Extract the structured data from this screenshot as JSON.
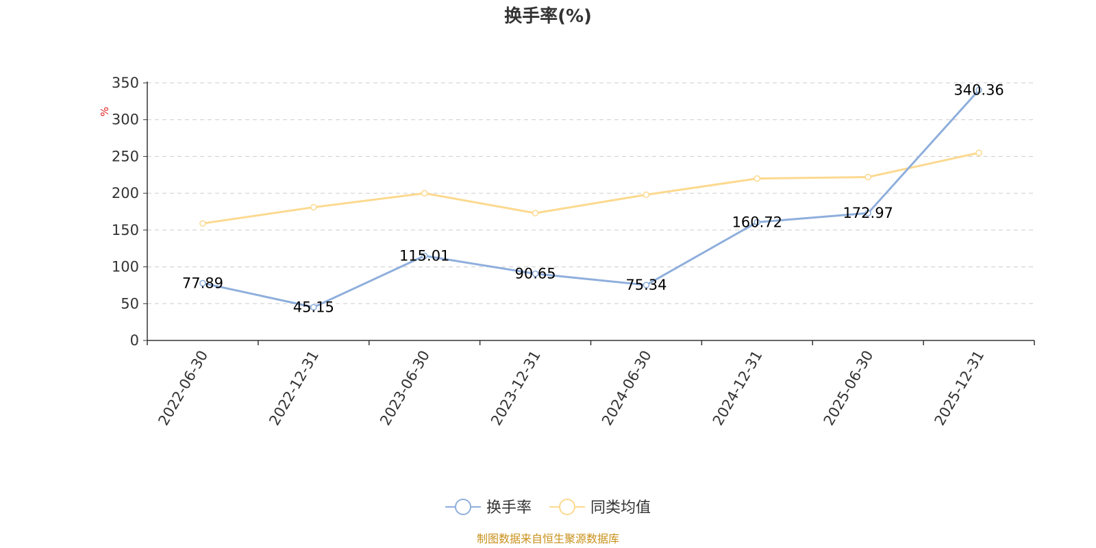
{
  "chart_data": {
    "type": "line",
    "title": "换手率(%)",
    "ylabel": "%",
    "xlabel": "",
    "ylim": [
      0,
      350
    ],
    "yticks": [
      0,
      50,
      100,
      150,
      200,
      250,
      300,
      350
    ],
    "grid": true,
    "categories": [
      "2022-06-30",
      "2022-12-31",
      "2023-06-30",
      "2023-12-31",
      "2024-06-30",
      "2024-12-31",
      "2025-06-30",
      "2025-12-31"
    ],
    "series": [
      {
        "name": "换手率",
        "color": "#8eaedc",
        "values": [
          77.89,
          45.15,
          115.01,
          90.65,
          75.34,
          160.72,
          172.97,
          340.36
        ],
        "labels": [
          "77.89",
          "45.15",
          "115.01",
          "90.65",
          "75.34",
          "160.72",
          "172.97",
          "340.36"
        ]
      },
      {
        "name": "同类均值",
        "color": "#fcd98f",
        "values": [
          159,
          181,
          200,
          173,
          198,
          220,
          222,
          255
        ]
      }
    ],
    "legend_position": "bottom-center"
  },
  "source": {
    "text": "制图数据来自恒生聚源数据库",
    "color": "#c8901a"
  }
}
